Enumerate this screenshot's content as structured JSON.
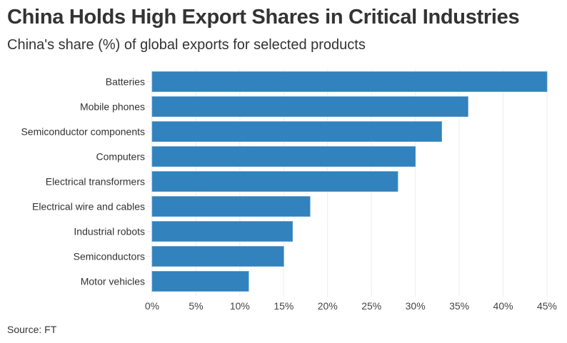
{
  "header": {
    "title": "China Holds High Export Shares in Critical Industries",
    "subtitle": "China's share (%) of global exports for selected products"
  },
  "footer": {
    "source": "Source: FT"
  },
  "colors": {
    "bar": "#3182bd",
    "grid": "#ececec"
  },
  "chart_data": {
    "type": "bar",
    "orientation": "horizontal",
    "title": "China Holds High Export Shares in Critical Industries",
    "subtitle": "China's share (%) of global exports for selected products",
    "xlabel": "",
    "ylabel": "",
    "categories": [
      "Batteries",
      "Mobile phones",
      "Semiconductor components",
      "Computers",
      "Electrical transformers",
      "Electrical wire and cables",
      "Industrial robots",
      "Semiconductors",
      "Motor vehicles"
    ],
    "values": [
      45,
      36,
      33,
      30,
      28,
      18,
      16,
      15,
      11
    ],
    "unit": "%",
    "xlim": [
      0,
      45
    ],
    "xticks": [
      0,
      5,
      10,
      15,
      20,
      25,
      30,
      35,
      40,
      45
    ],
    "xtick_labels": [
      "0%",
      "5%",
      "10%",
      "15%",
      "20%",
      "25%",
      "30%",
      "35%",
      "40%",
      "45%"
    ],
    "grid": true,
    "legend": "none",
    "source": "Source: FT"
  }
}
